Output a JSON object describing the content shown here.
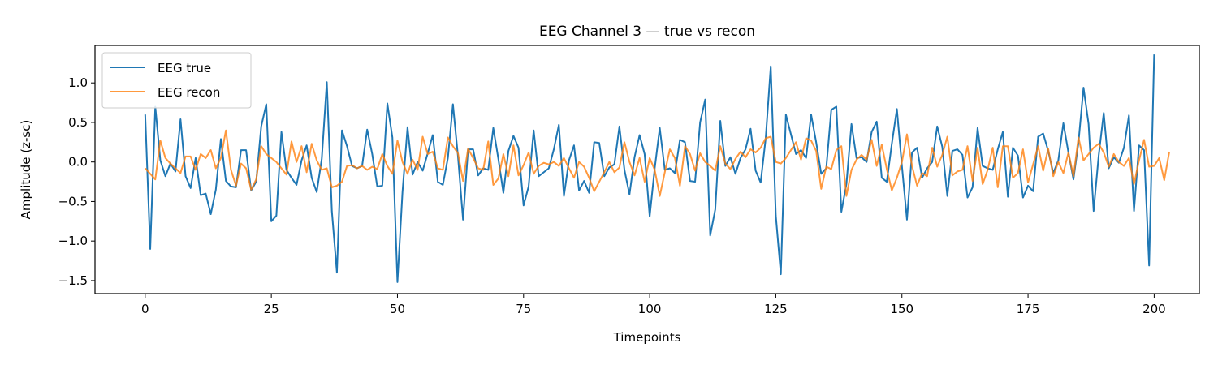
{
  "chart_data": {
    "type": "line",
    "title": "EEG Channel 3 — true vs recon",
    "xlabel": "Timepoints",
    "ylabel": "Amplitude (z-sc)",
    "xlim": [
      -9.95,
      208.95
    ],
    "ylim": [
      -1.665,
      1.474
    ],
    "xticks": [
      0,
      25,
      50,
      75,
      100,
      125,
      150,
      175,
      200
    ],
    "yticks": [
      -1.5,
      -1.0,
      -0.5,
      0.0,
      0.5,
      1.0
    ],
    "xtick_labels": [
      "0",
      "25",
      "50",
      "75",
      "100",
      "125",
      "150",
      "175",
      "200"
    ],
    "ytick_labels": [
      "−1.5",
      "−1.0",
      "−0.5",
      "0.0",
      "0.5",
      "1.0"
    ],
    "grid": false,
    "legend_position": "top-left",
    "series": [
      {
        "name": "EEG true",
        "color": "#1f77b4",
        "x_start": 0,
        "values": [
          0.6,
          -1.1,
          0.7,
          0.02,
          -0.18,
          -0.02,
          -0.12,
          0.54,
          -0.18,
          -0.33,
          0.05,
          -0.42,
          -0.4,
          -0.66,
          -0.35,
          0.29,
          -0.24,
          -0.31,
          -0.32,
          0.15,
          0.15,
          -0.36,
          -0.25,
          0.45,
          0.73,
          -0.75,
          -0.68,
          0.38,
          -0.1,
          -0.2,
          -0.29,
          0.02,
          0.21,
          -0.2,
          -0.38,
          0.04,
          1.01,
          -0.62,
          -1.4,
          0.4,
          0.2,
          -0.05,
          -0.08,
          -0.05,
          0.41,
          0.1,
          -0.31,
          -0.3,
          0.74,
          0.31,
          -1.52,
          -0.38,
          0.44,
          -0.16,
          0.0,
          -0.11,
          0.11,
          0.34,
          -0.25,
          -0.29,
          0.05,
          0.73,
          0.07,
          -0.73,
          0.16,
          0.16,
          -0.17,
          -0.08,
          -0.1,
          0.43,
          0.04,
          -0.39,
          0.14,
          0.33,
          0.18,
          -0.55,
          -0.31,
          0.4,
          -0.18,
          -0.13,
          -0.08,
          0.16,
          0.47,
          -0.43,
          0.02,
          0.21,
          -0.36,
          -0.24,
          -0.39,
          0.25,
          0.24,
          -0.18,
          -0.07,
          -0.03,
          0.45,
          -0.1,
          -0.41,
          0.06,
          0.34,
          0.1,
          -0.69,
          -0.08,
          0.43,
          -0.1,
          -0.08,
          -0.14,
          0.28,
          0.25,
          -0.24,
          -0.25,
          0.5,
          0.79,
          -0.93,
          -0.6,
          0.52,
          -0.05,
          0.06,
          -0.15,
          0.05,
          0.16,
          0.42,
          -0.11,
          -0.26,
          0.3,
          1.21,
          -0.68,
          -1.42,
          0.6,
          0.35,
          0.1,
          0.15,
          0.05,
          0.6,
          0.25,
          -0.15,
          -0.08,
          0.66,
          0.7,
          -0.63,
          -0.28,
          0.48,
          0.05,
          0.06,
          0.0,
          0.38,
          0.51,
          -0.2,
          -0.25,
          0.23,
          0.67,
          -0.05,
          -0.73,
          0.12,
          0.18,
          -0.2,
          -0.08,
          0.0,
          0.45,
          0.19,
          -0.43,
          0.14,
          0.16,
          0.09,
          -0.45,
          -0.32,
          0.43,
          -0.05,
          -0.08,
          -0.1,
          0.16,
          0.38,
          -0.44,
          0.18,
          0.08,
          -0.45,
          -0.3,
          -0.37,
          0.32,
          0.36,
          0.14,
          -0.14,
          0.02,
          0.49,
          0.12,
          -0.22,
          0.25,
          0.94,
          0.48,
          -0.62,
          0.08,
          0.62,
          -0.08,
          0.06,
          -0.01,
          0.18,
          0.59,
          -0.62,
          0.21,
          0.15,
          -1.31,
          1.36
        ]
      },
      {
        "name": "EEG recon",
        "color": "#ff7f0e",
        "x_start": 0,
        "values": [
          -0.08,
          -0.15,
          -0.22,
          0.27,
          0.05,
          -0.02,
          -0.08,
          -0.14,
          0.07,
          0.07,
          -0.1,
          0.1,
          0.05,
          0.15,
          -0.08,
          0.05,
          0.4,
          -0.1,
          -0.3,
          -0.02,
          -0.08,
          -0.35,
          -0.22,
          0.2,
          0.1,
          0.05,
          0.0,
          -0.08,
          -0.16,
          0.26,
          0.0,
          0.2,
          -0.13,
          0.23,
          0.02,
          -0.1,
          -0.08,
          -0.32,
          -0.3,
          -0.25,
          -0.05,
          -0.04,
          -0.08,
          -0.05,
          -0.1,
          -0.06,
          -0.09,
          0.1,
          -0.05,
          -0.15,
          0.27,
          0.0,
          -0.15,
          0.03,
          -0.1,
          0.32,
          0.1,
          0.13,
          -0.08,
          -0.1,
          0.31,
          0.2,
          0.11,
          -0.24,
          0.17,
          0.05,
          -0.08,
          -0.1,
          0.26,
          -0.29,
          -0.21,
          0.1,
          -0.18,
          0.21,
          -0.17,
          -0.04,
          0.12,
          -0.15,
          -0.05,
          -0.01,
          -0.03,
          0.0,
          -0.05,
          0.05,
          -0.08,
          -0.2,
          0.0,
          -0.06,
          -0.2,
          -0.37,
          -0.25,
          -0.13,
          0.0,
          -0.13,
          -0.07,
          0.25,
          0.0,
          -0.17,
          0.05,
          -0.25,
          0.05,
          -0.1,
          -0.43,
          -0.13,
          0.16,
          0.05,
          -0.3,
          0.2,
          0.1,
          -0.11,
          0.11,
          0.0,
          -0.05,
          -0.11,
          0.2,
          -0.02,
          -0.09,
          0.04,
          0.13,
          0.06,
          0.16,
          0.12,
          0.18,
          0.3,
          0.32,
          0.0,
          -0.02,
          0.05,
          0.15,
          0.25,
          0.03,
          0.3,
          0.27,
          0.14,
          -0.34,
          -0.06,
          -0.09,
          0.15,
          0.2,
          -0.43,
          -0.1,
          0.03,
          0.09,
          0.03,
          0.28,
          -0.05,
          0.22,
          -0.09,
          -0.36,
          -0.2,
          0.0,
          0.35,
          -0.05,
          -0.3,
          -0.14,
          -0.18,
          0.18,
          -0.06,
          0.09,
          0.32,
          -0.17,
          -0.12,
          -0.1,
          0.2,
          -0.24,
          0.18,
          -0.28,
          -0.1,
          0.18,
          -0.32,
          0.2,
          0.2,
          -0.2,
          -0.14,
          0.16,
          -0.26,
          -0.03,
          0.2,
          -0.11,
          0.17,
          -0.18,
          0.0,
          -0.14,
          0.12,
          -0.18,
          0.31,
          0.02,
          0.1,
          0.18,
          0.23,
          0.12,
          -0.06,
          0.1,
          0.0,
          -0.05,
          0.05,
          -0.28,
          0.02,
          0.28,
          -0.06,
          -0.05,
          0.05,
          -0.23,
          0.13
        ]
      }
    ]
  }
}
